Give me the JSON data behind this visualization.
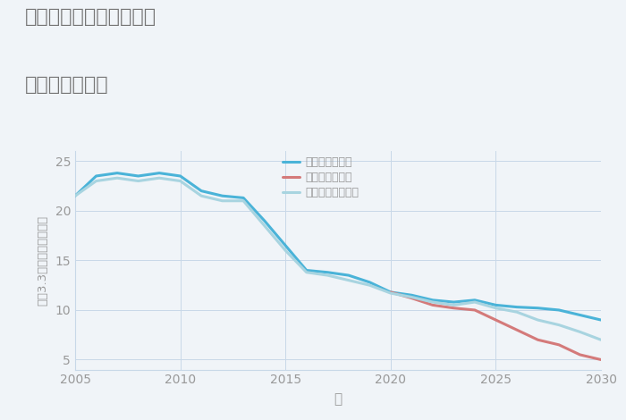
{
  "title_line1": "三重県伊賀市上野忍町の",
  "title_line2": "土地の価格推移",
  "xlabel": "年",
  "ylabel": "坪（3.3㎡）単価（万円）",
  "background_color": "#f0f4f8",
  "good_scenario": {
    "label": "グッドシナリオ",
    "color": "#4ab3d8",
    "years": [
      2005,
      2006,
      2007,
      2008,
      2009,
      2010,
      2011,
      2012,
      2013,
      2014,
      2015,
      2016,
      2017,
      2018,
      2019,
      2020,
      2021,
      2022,
      2023,
      2024,
      2025,
      2026,
      2027,
      2028,
      2029,
      2030
    ],
    "values": [
      21.5,
      23.5,
      23.8,
      23.5,
      23.8,
      23.5,
      22.0,
      21.5,
      21.3,
      19.0,
      16.5,
      14.0,
      13.8,
      13.5,
      12.8,
      11.8,
      11.5,
      11.0,
      10.8,
      11.0,
      10.5,
      10.3,
      10.2,
      10.0,
      9.5,
      9.0
    ]
  },
  "bad_scenario": {
    "label": "バッドシナリオ",
    "color": "#d47a7a",
    "years": [
      2020,
      2021,
      2022,
      2023,
      2024,
      2025,
      2026,
      2027,
      2028,
      2029,
      2030
    ],
    "values": [
      11.8,
      11.2,
      10.5,
      10.2,
      10.0,
      9.0,
      8.0,
      7.0,
      6.5,
      5.5,
      5.0
    ]
  },
  "normal_scenario": {
    "label": "ノーマルシナリオ",
    "color": "#a8d4e0",
    "years": [
      2005,
      2006,
      2007,
      2008,
      2009,
      2010,
      2011,
      2012,
      2013,
      2014,
      2015,
      2016,
      2017,
      2018,
      2019,
      2020,
      2021,
      2022,
      2023,
      2024,
      2025,
      2026,
      2027,
      2028,
      2029,
      2030
    ],
    "values": [
      21.5,
      23.0,
      23.3,
      23.0,
      23.3,
      23.0,
      21.5,
      21.0,
      21.0,
      18.5,
      16.0,
      13.8,
      13.5,
      13.0,
      12.5,
      11.7,
      11.3,
      10.8,
      10.5,
      10.8,
      10.2,
      9.8,
      9.0,
      8.5,
      7.8,
      7.0
    ]
  },
  "xlim": [
    2005,
    2030
  ],
  "ylim": [
    4,
    26
  ],
  "yticks": [
    5,
    10,
    15,
    20,
    25
  ],
  "xticks": [
    2005,
    2010,
    2015,
    2020,
    2025,
    2030
  ],
  "grid_color": "#c8d8e8",
  "title_color": "#777777",
  "axis_color": "#999999",
  "linewidth": 2.2
}
